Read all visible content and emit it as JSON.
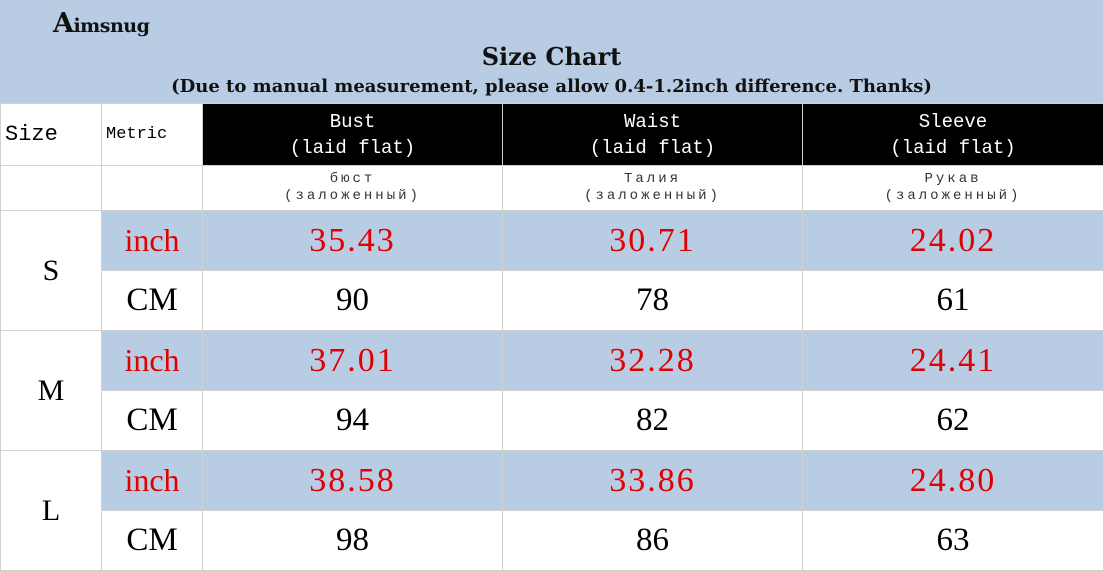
{
  "brand": {
    "initial": "A",
    "rest": "imsnug"
  },
  "title": "Size Chart",
  "note": "(Due to manual measurement, please allow 0.4-1.2inch difference. Thanks)",
  "header": {
    "size": "Size",
    "metric": "Metric",
    "columns": [
      {
        "en": "Bust",
        "en_sub": "(laid flat)",
        "ru": "бюст",
        "ru_sub": "(заложенный)"
      },
      {
        "en": "Waist",
        "en_sub": "(laid flat)",
        "ru": "Талия",
        "ru_sub": "(заложенный)"
      },
      {
        "en": "Sleeve",
        "en_sub": "(laid flat)",
        "ru": "Рукав",
        "ru_sub": "(заложенный)"
      }
    ]
  },
  "rows": [
    {
      "size": "S",
      "inch_label": "inch",
      "inch": [
        "35.43",
        "30.71",
        "24.02"
      ],
      "cm_label": "CM",
      "cm": [
        "90",
        "78",
        "61"
      ]
    },
    {
      "size": "M",
      "inch_label": "inch",
      "inch": [
        "37.01",
        "32.28",
        "24.41"
      ],
      "cm_label": "CM",
      "cm": [
        "94",
        "82",
        "62"
      ]
    },
    {
      "size": "L",
      "inch_label": "inch",
      "inch": [
        "38.58",
        "33.86",
        "24.80"
      ],
      "cm_label": "CM",
      "cm": [
        "98",
        "86",
        "63"
      ]
    }
  ],
  "colors": {
    "header_band": "#b8cce4",
    "inch_text": "#e00000",
    "column_header_bg": "#000000"
  }
}
